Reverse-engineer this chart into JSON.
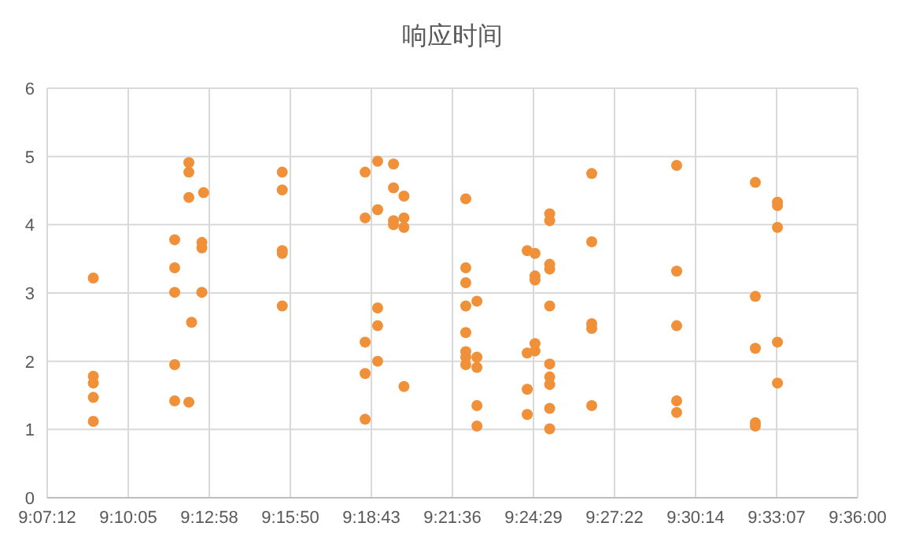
{
  "chart_data": {
    "type": "scatter",
    "title": "响应时间",
    "marker": "circle",
    "grid": true,
    "xlim": [
      9.12,
      9.6
    ],
    "ylim": [
      0,
      6
    ],
    "yticks": [
      0,
      1,
      2,
      3,
      4,
      5,
      6
    ],
    "xticks": [
      {
        "value": 9.12,
        "label": "9:07:12"
      },
      {
        "value": 9.168,
        "label": "9:10:05"
      },
      {
        "value": 9.216,
        "label": "9:12:58"
      },
      {
        "value": 9.264,
        "label": "9:15:50"
      },
      {
        "value": 9.312,
        "label": "9:18:43"
      },
      {
        "value": 9.36,
        "label": "9:21:36"
      },
      {
        "value": 9.408,
        "label": "9:24:29"
      },
      {
        "value": 9.456,
        "label": "9:27:22"
      },
      {
        "value": 9.504,
        "label": "9:30:14"
      },
      {
        "value": 9.552,
        "label": "9:33:07"
      },
      {
        "value": 9.6,
        "label": "9:36:00"
      }
    ],
    "series": [
      {
        "color": "#f0913a",
        "x": [
          9.1473,
          9.1473,
          9.1473,
          9.1473,
          9.1473,
          9.1955,
          9.1955,
          9.1955,
          9.1955,
          9.1955,
          9.2039,
          9.2039,
          9.2039,
          9.2039,
          9.2055,
          9.2126,
          9.2116,
          9.2116,
          9.2116,
          9.2592,
          9.2592,
          9.2592,
          9.2592,
          9.2592,
          9.3083,
          9.3083,
          9.3083,
          9.3083,
          9.3083,
          9.3157,
          9.3157,
          9.3157,
          9.3157,
          9.3157,
          9.3251,
          9.3251,
          9.3251,
          9.3251,
          9.3313,
          9.3313,
          9.3313,
          9.3313,
          9.3679,
          9.3679,
          9.3679,
          9.3679,
          9.3679,
          9.3679,
          9.3679,
          9.3679,
          9.3745,
          9.3745,
          9.3745,
          9.3745,
          9.3745,
          9.4043,
          9.4043,
          9.4043,
          9.4043,
          9.4089,
          9.4089,
          9.4089,
          9.4089,
          9.4089,
          9.4176,
          9.4176,
          9.4176,
          9.4176,
          9.4176,
          9.4176,
          9.4176,
          9.4176,
          9.4176,
          9.4176,
          9.4425,
          9.4425,
          9.4425,
          9.4425,
          9.4425,
          9.4928,
          9.4928,
          9.4928,
          9.4928,
          9.4928,
          9.5394,
          9.5394,
          9.5394,
          9.5394,
          9.5394,
          9.5525,
          9.5525,
          9.5525,
          9.5525,
          9.5525
        ],
        "values": [
          3.22,
          1.78,
          1.68,
          1.47,
          1.12,
          3.78,
          3.37,
          3.01,
          1.95,
          1.42,
          4.91,
          4.77,
          4.4,
          1.4,
          2.57,
          4.47,
          3.74,
          3.66,
          3.01,
          4.77,
          4.51,
          3.62,
          3.58,
          2.81,
          4.77,
          4.1,
          2.28,
          1.82,
          1.15,
          4.93,
          4.22,
          2.78,
          2.52,
          2.0,
          4.89,
          4.54,
          4.06,
          4.0,
          4.42,
          4.1,
          3.96,
          1.63,
          4.38,
          3.37,
          3.15,
          2.81,
          2.42,
          2.14,
          2.06,
          1.95,
          2.88,
          2.06,
          1.91,
          1.35,
          1.05,
          3.62,
          2.12,
          1.59,
          1.22,
          3.58,
          3.25,
          3.19,
          2.26,
          2.15,
          4.16,
          4.06,
          3.42,
          3.35,
          2.81,
          1.96,
          1.77,
          1.66,
          1.31,
          1.01,
          4.75,
          3.75,
          2.55,
          2.48,
          1.35,
          4.87,
          3.32,
          2.52,
          1.42,
          1.25,
          4.62,
          2.95,
          2.19,
          1.1,
          1.05,
          4.33,
          4.28,
          3.96,
          2.28,
          1.68
        ]
      }
    ]
  }
}
